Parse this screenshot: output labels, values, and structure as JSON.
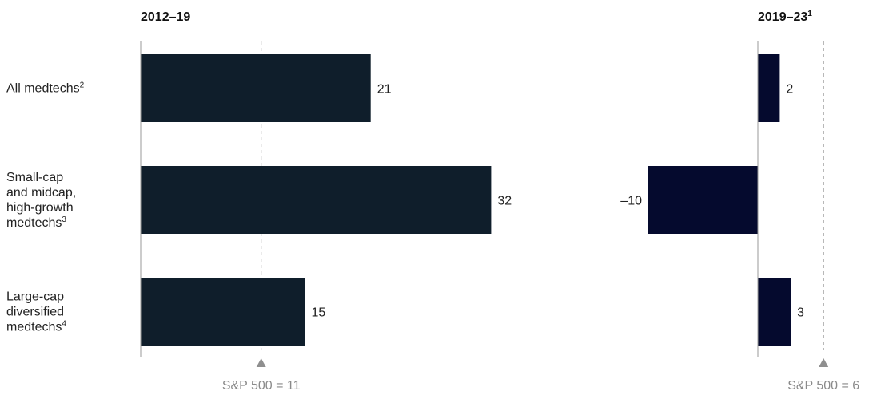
{
  "colors": {
    "bar_left": "#0f1e2b",
    "bar_right": "#050a2e",
    "axis": "#999999",
    "reference": "#9a9a9a",
    "text": "#222222",
    "ref_text": "#8a8a8a"
  },
  "categories": [
    {
      "lines": [
        "All medtechs"
      ],
      "sup": "2"
    },
    {
      "lines": [
        "Small-cap",
        "and midcap,",
        "high-growth",
        "medtechs"
      ],
      "sup": "3"
    },
    {
      "lines": [
        "Large-cap",
        "diversified",
        "medtechs"
      ],
      "sup": "4"
    }
  ],
  "chart_data": [
    {
      "type": "bar",
      "orientation": "horizontal",
      "title": "2012–19",
      "title_sup": "",
      "categories": [
        "All medtechs",
        "Small-cap and midcap, high-growth medtechs",
        "Large-cap diversified medtechs"
      ],
      "values": [
        21,
        32,
        15
      ],
      "value_labels": [
        "21",
        "32",
        "15"
      ],
      "reference": {
        "label": "S&P 500 = 11",
        "value": 11
      }
    },
    {
      "type": "bar",
      "orientation": "horizontal",
      "title": "2019–23",
      "title_sup": "1",
      "categories": [
        "All medtechs",
        "Small-cap and midcap, high-growth medtechs",
        "Large-cap diversified medtechs"
      ],
      "values": [
        2,
        -10,
        3
      ],
      "value_labels": [
        "2",
        "–10",
        "3"
      ],
      "reference": {
        "label": "S&P 500 = 6",
        "value": 6
      }
    }
  ]
}
